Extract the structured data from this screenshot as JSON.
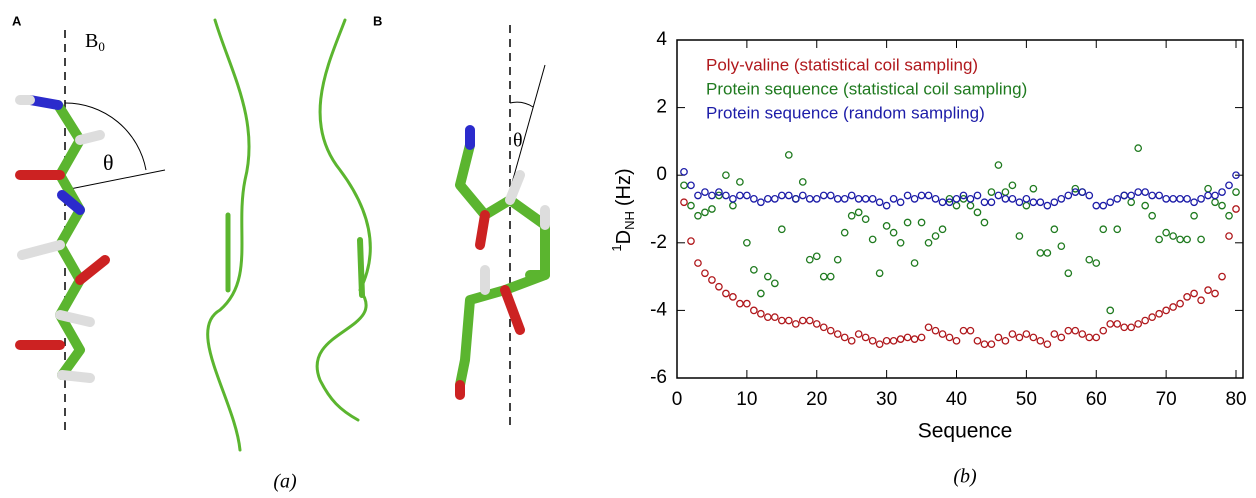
{
  "figure_a": {
    "label_a": "A",
    "field": "B",
    "field_sub": "0",
    "angle_a": "θ",
    "label_b": "B",
    "angle_b": "θ",
    "caption": "(a)"
  },
  "caption_b": "(b)",
  "chart_data": {
    "type": "line",
    "xlabel": "Sequence",
    "ylabel": {
      "sup": "1",
      "main": "D",
      "sub": "NH",
      "unit": "(Hz)"
    },
    "xlim": [
      0,
      81
    ],
    "xticks": [
      0,
      10,
      20,
      30,
      40,
      50,
      60,
      70,
      80
    ],
    "ylim": [
      -6,
      4
    ],
    "yticks": [
      -6,
      -4,
      -2,
      0,
      2,
      4
    ],
    "grid": false,
    "x": [
      1,
      2,
      3,
      4,
      5,
      6,
      7,
      8,
      9,
      10,
      11,
      12,
      13,
      14,
      15,
      16,
      17,
      18,
      19,
      20,
      21,
      22,
      23,
      24,
      25,
      26,
      27,
      28,
      29,
      30,
      31,
      32,
      33,
      34,
      35,
      36,
      37,
      38,
      39,
      40,
      41,
      42,
      43,
      44,
      45,
      46,
      47,
      48,
      49,
      50,
      51,
      52,
      53,
      54,
      55,
      56,
      57,
      58,
      59,
      60,
      61,
      62,
      63,
      64,
      65,
      66,
      67,
      68,
      69,
      70,
      71,
      72,
      73,
      74,
      75,
      76,
      77,
      78,
      79,
      80
    ],
    "series": [
      {
        "name": "Poly-valine (statistical coil sampling)",
        "color": "#b0181c",
        "values": [
          -0.8,
          -1.95,
          -2.6,
          -2.9,
          -3.1,
          -3.3,
          -3.5,
          -3.6,
          -3.8,
          -3.8,
          -4.0,
          -4.1,
          -4.2,
          -4.2,
          -4.3,
          -4.3,
          -4.4,
          -4.3,
          -4.3,
          -4.4,
          -4.5,
          -4.6,
          -4.7,
          -4.8,
          -4.9,
          -4.7,
          -4.8,
          -4.9,
          -5.0,
          -4.9,
          -4.9,
          -4.85,
          -4.8,
          -4.85,
          -4.8,
          -4.5,
          -4.6,
          -4.7,
          -4.8,
          -4.9,
          -4.6,
          -4.6,
          -4.9,
          -5.0,
          -5.0,
          -4.8,
          -4.9,
          -4.7,
          -4.8,
          -4.7,
          -4.8,
          -4.9,
          -5.0,
          -4.7,
          -4.8,
          -4.6,
          -4.6,
          -4.7,
          -4.8,
          -4.8,
          -4.6,
          -4.4,
          -4.4,
          -4.5,
          -4.5,
          -4.4,
          -4.3,
          -4.2,
          -4.1,
          -4.0,
          -3.9,
          -3.8,
          -3.6,
          -3.5,
          -3.7,
          -3.4,
          -3.5,
          -3.0,
          -1.8,
          -1.0
        ]
      },
      {
        "name": "Protein sequence (statistical coil sampling)",
        "color": "#1f7a1f",
        "values": [
          -0.3,
          -0.9,
          -1.2,
          -1.1,
          -1.0,
          -0.6,
          0.0,
          -0.9,
          -0.2,
          -2.0,
          -2.8,
          -3.5,
          -3.0,
          -3.2,
          -1.6,
          0.6,
          -0.7,
          -0.2,
          -2.5,
          -2.4,
          -3.0,
          -3.0,
          -2.5,
          -1.7,
          -1.2,
          -1.1,
          -1.3,
          -1.9,
          -2.9,
          -1.5,
          -1.7,
          -2.0,
          -1.4,
          -2.6,
          -1.4,
          -2.0,
          -1.8,
          -1.6,
          -0.7,
          -0.9,
          -0.7,
          -0.9,
          -1.1,
          -1.4,
          -0.5,
          0.3,
          -0.5,
          -0.3,
          -1.8,
          -0.9,
          -0.4,
          -2.3,
          -2.3,
          -1.6,
          -2.1,
          -2.9,
          -0.4,
          -0.5,
          -2.5,
          -2.6,
          -1.6,
          -4.0,
          -1.6,
          -0.6,
          -0.8,
          0.8,
          -0.9,
          -1.2,
          -1.9,
          -1.7,
          -1.8,
          -1.9,
          -1.9,
          -1.2,
          -1.9,
          -0.4,
          -0.8,
          -0.9,
          -1.2,
          -0.5
        ]
      },
      {
        "name": "Protein sequence (random sampling)",
        "color": "#1c1ca8",
        "values": [
          0.1,
          -0.3,
          -0.6,
          -0.5,
          -0.6,
          -0.5,
          -0.6,
          -0.7,
          -0.6,
          -0.6,
          -0.7,
          -0.8,
          -0.7,
          -0.7,
          -0.6,
          -0.6,
          -0.7,
          -0.6,
          -0.7,
          -0.7,
          -0.6,
          -0.6,
          -0.7,
          -0.7,
          -0.6,
          -0.7,
          -0.7,
          -0.7,
          -0.8,
          -0.9,
          -0.7,
          -0.8,
          -0.6,
          -0.7,
          -0.6,
          -0.6,
          -0.7,
          -0.8,
          -0.8,
          -0.7,
          -0.6,
          -0.7,
          -0.6,
          -0.8,
          -0.8,
          -0.6,
          -0.7,
          -0.7,
          -0.8,
          -0.7,
          -0.8,
          -0.8,
          -0.9,
          -0.8,
          -0.7,
          -0.6,
          -0.5,
          -0.5,
          -0.6,
          -0.9,
          -0.9,
          -0.8,
          -0.7,
          -0.6,
          -0.6,
          -0.5,
          -0.5,
          -0.6,
          -0.6,
          -0.7,
          -0.7,
          -0.7,
          -0.7,
          -0.8,
          -0.7,
          -0.6,
          -0.6,
          -0.5,
          -0.3,
          0.0
        ]
      }
    ]
  }
}
